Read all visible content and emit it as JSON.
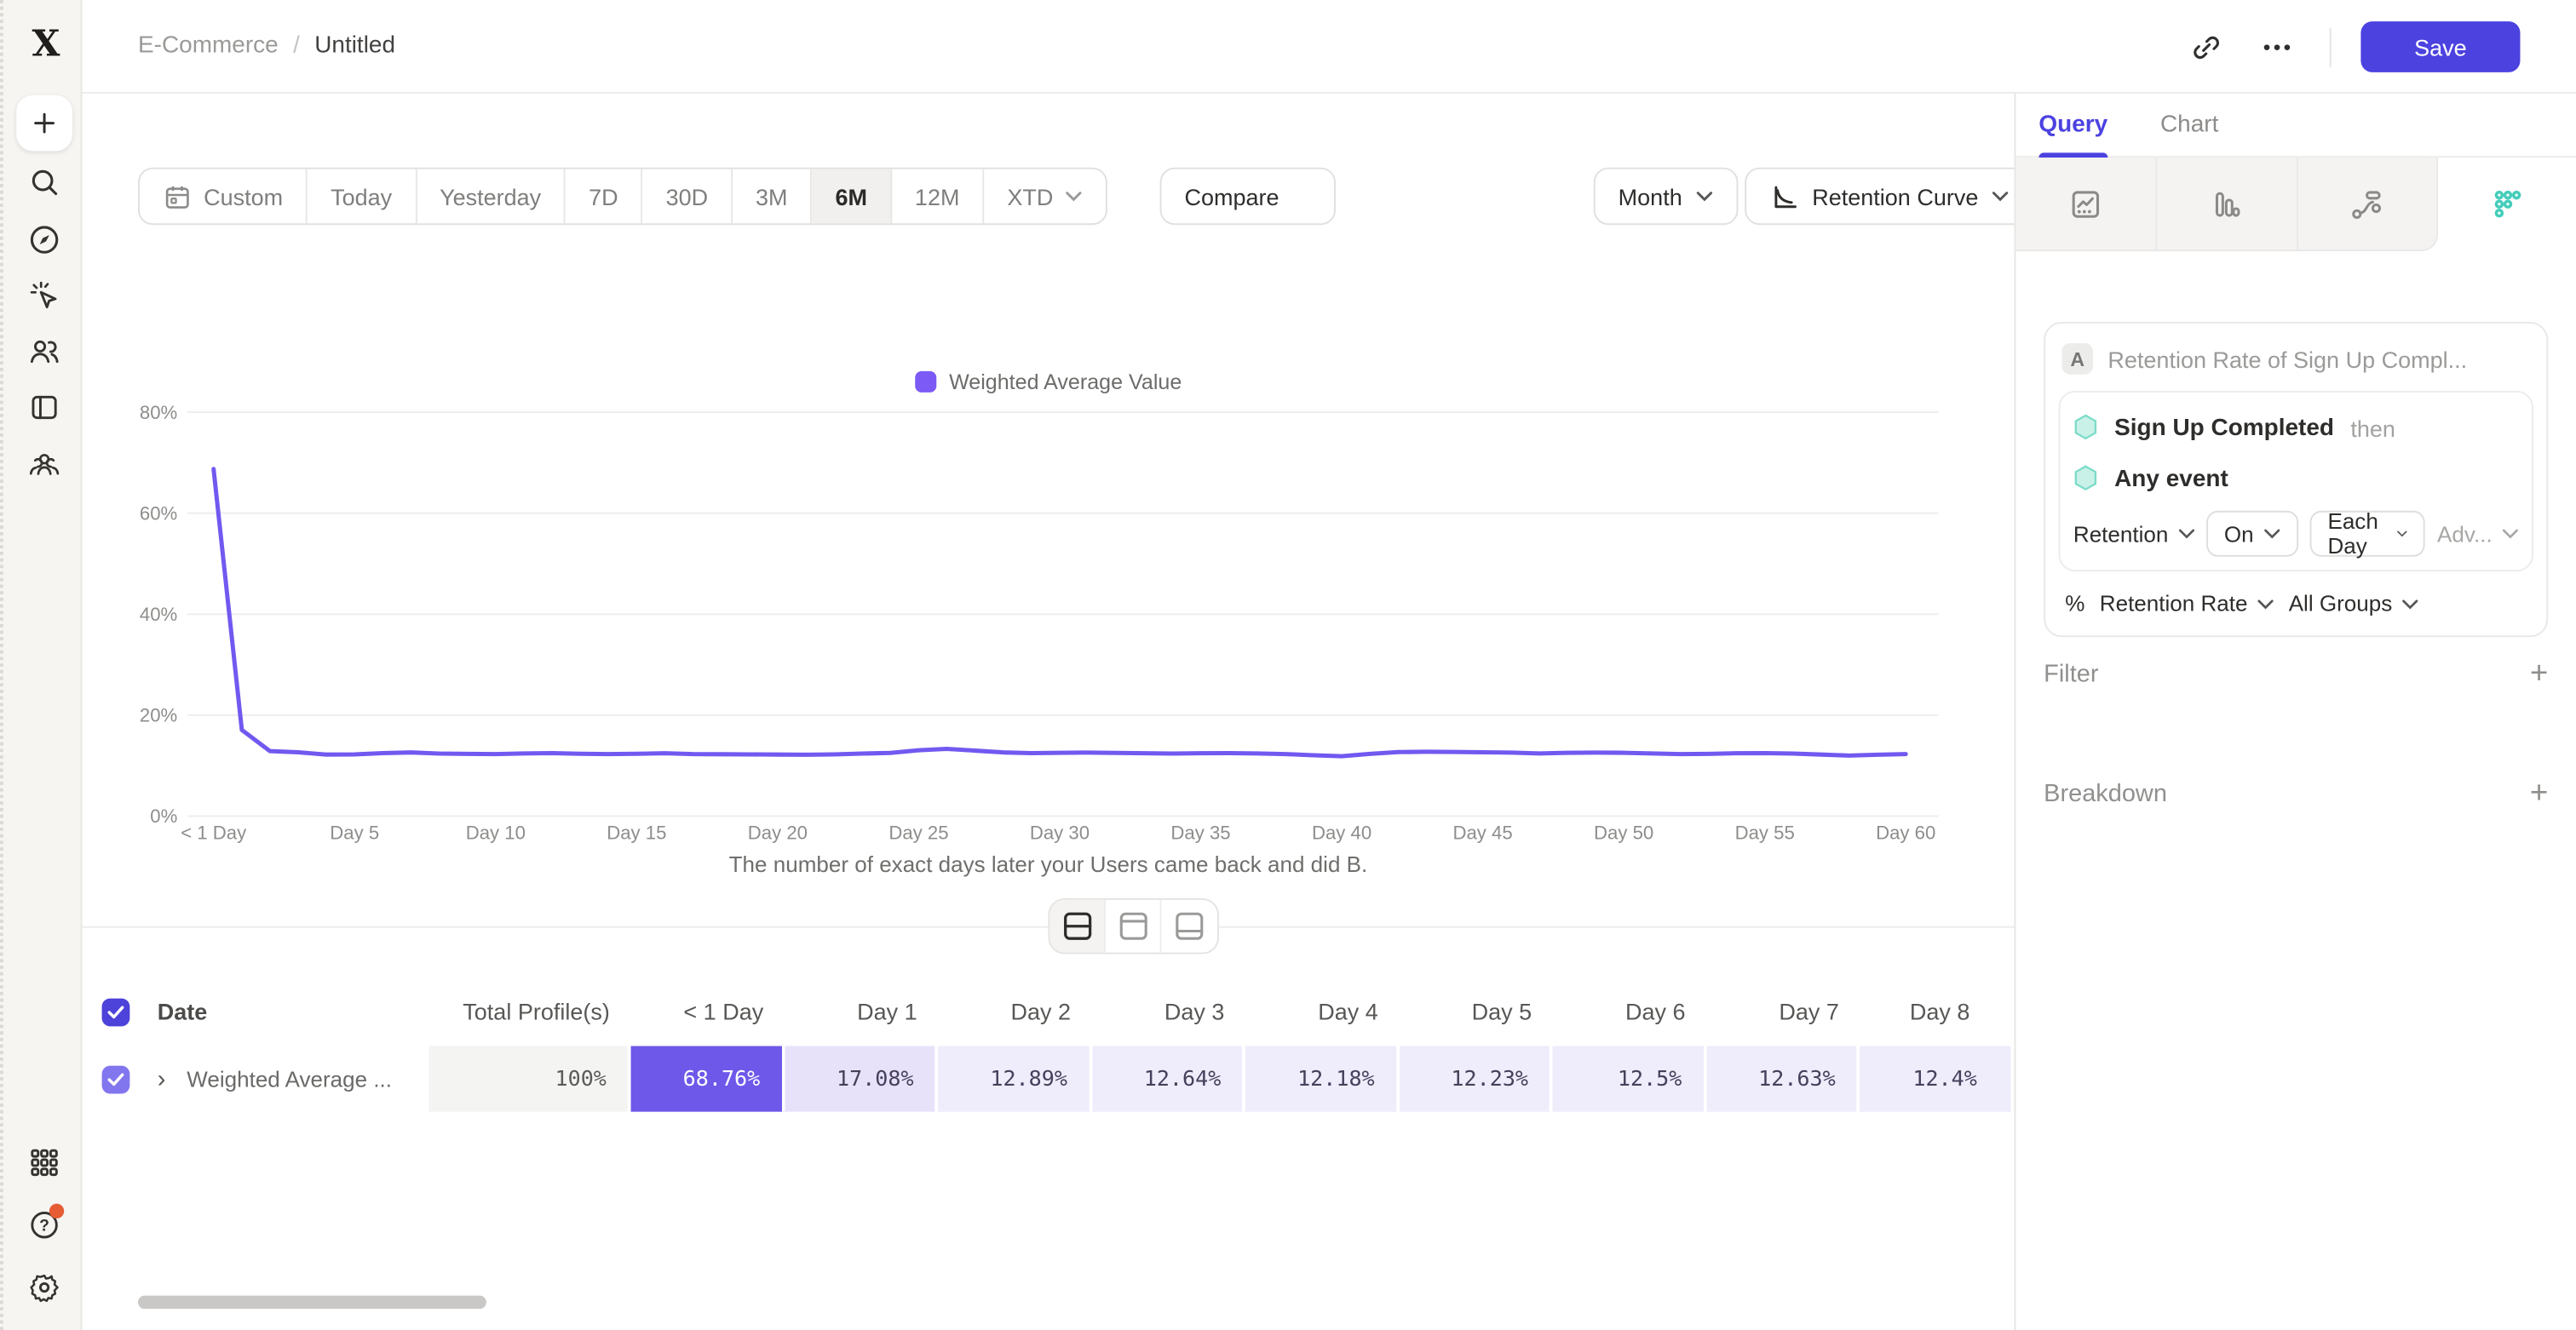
{
  "app": {
    "accent": "#4c42e0",
    "teal": "#45cdbb",
    "line_color": "#7159f0",
    "legend_color": "#7b5af5"
  },
  "header": {
    "breadcrumb": {
      "parent": "E-Commerce",
      "separator": "/",
      "current": "Untitled"
    },
    "ellipsis": "•••",
    "save_label": "Save"
  },
  "left_rail": {
    "icons": [
      "mixpanel-logo",
      "plus",
      "search",
      "compass",
      "cursor-sparkle",
      "users",
      "board",
      "group",
      "apps-grid",
      "help",
      "settings"
    ]
  },
  "toolbar": {
    "ranges": [
      "Custom",
      "Today",
      "Yesterday",
      "7D",
      "30D",
      "3M",
      "6M",
      "12M",
      "XTD"
    ],
    "active_range": "6M",
    "caret_ranges": [
      "XTD"
    ],
    "compare_label": "Compare",
    "granularity_label": "Month",
    "chart_type_label": "Retention Curve"
  },
  "chart_data": {
    "type": "line",
    "title": "",
    "legend": [
      "Weighted Average Value"
    ],
    "legend_position": "top",
    "grid": true,
    "xlabel": "The number of exact days later your Users came back and did B.",
    "ylabel": "",
    "ylim": [
      0,
      80
    ],
    "y_ticks": [
      {
        "value": 0,
        "label": "0%"
      },
      {
        "value": 20,
        "label": "20%"
      },
      {
        "value": 40,
        "label": "40%"
      },
      {
        "value": 60,
        "label": "60%"
      },
      {
        "value": 80,
        "label": "80%"
      }
    ],
    "x_ticks": [
      {
        "day": 0,
        "label": "< 1 Day"
      },
      {
        "day": 5,
        "label": "Day 5"
      },
      {
        "day": 10,
        "label": "Day 10"
      },
      {
        "day": 15,
        "label": "Day 15"
      },
      {
        "day": 20,
        "label": "Day 20"
      },
      {
        "day": 25,
        "label": "Day 25"
      },
      {
        "day": 30,
        "label": "Day 30"
      },
      {
        "day": 35,
        "label": "Day 35"
      },
      {
        "day": 40,
        "label": "Day 40"
      },
      {
        "day": 45,
        "label": "Day 45"
      },
      {
        "day": 50,
        "label": "Day 50"
      },
      {
        "day": 55,
        "label": "Day 55"
      },
      {
        "day": 60,
        "label": "Day 60"
      }
    ],
    "series": [
      {
        "name": "Weighted Average Value",
        "x_days": "0-60",
        "values": [
          68.76,
          17.08,
          12.89,
          12.64,
          12.18,
          12.23,
          12.5,
          12.63,
          12.4,
          12.33,
          12.3,
          12.42,
          12.48,
          12.35,
          12.28,
          12.36,
          12.44,
          12.3,
          12.27,
          12.22,
          12.18,
          12.15,
          12.24,
          12.38,
          12.52,
          13.05,
          13.32,
          12.98,
          12.62,
          12.5,
          12.55,
          12.6,
          12.52,
          12.46,
          12.4,
          12.44,
          12.5,
          12.42,
          12.3,
          12.08,
          11.86,
          12.32,
          12.68,
          12.74,
          12.7,
          12.66,
          12.6,
          12.42,
          12.55,
          12.6,
          12.55,
          12.42,
          12.3,
          12.34,
          12.44,
          12.5,
          12.4,
          12.2,
          12.0,
          12.15,
          12.3
        ]
      }
    ]
  },
  "view_toggle": {
    "options": [
      "split-view",
      "chart-view",
      "table-view"
    ],
    "selected": "split-view"
  },
  "table": {
    "columns": [
      "Date",
      "Total Profile(s)",
      "< 1 Day",
      "Day 1",
      "Day 2",
      "Day 3",
      "Day 4",
      "Day 5",
      "Day 6",
      "Day 7",
      "Day 8"
    ],
    "rows": [
      {
        "checked": true,
        "name": "Weighted Average ...",
        "values": [
          "100%",
          "68.76%",
          "17.08%",
          "12.89%",
          "12.64%",
          "12.18%",
          "12.23%",
          "12.5%",
          "12.63%",
          "12.4%"
        ]
      }
    ]
  },
  "query_panel": {
    "tabs": [
      "Query",
      "Chart"
    ],
    "active_tab": "Query",
    "report_icons": [
      "insights-icon",
      "funnels-icon",
      "flows-icon",
      "retention-icon"
    ],
    "active_report": "retention-icon",
    "card": {
      "badge": "A",
      "title": "Retention Rate of Sign Up Compl...",
      "event_1": "Sign Up Completed",
      "event_1_suffix": "then",
      "event_2": "Any event",
      "retention_label": "Retention",
      "on_label": "On",
      "each_day_label": "Each Day",
      "advanced_label": "Adv...",
      "percent_sign": "%",
      "measure_label": "Retention Rate",
      "groups_label": "All Groups"
    },
    "filter": {
      "label": "Filter",
      "add": "+"
    },
    "breakdown": {
      "label": "Breakdown",
      "add": "+"
    }
  }
}
